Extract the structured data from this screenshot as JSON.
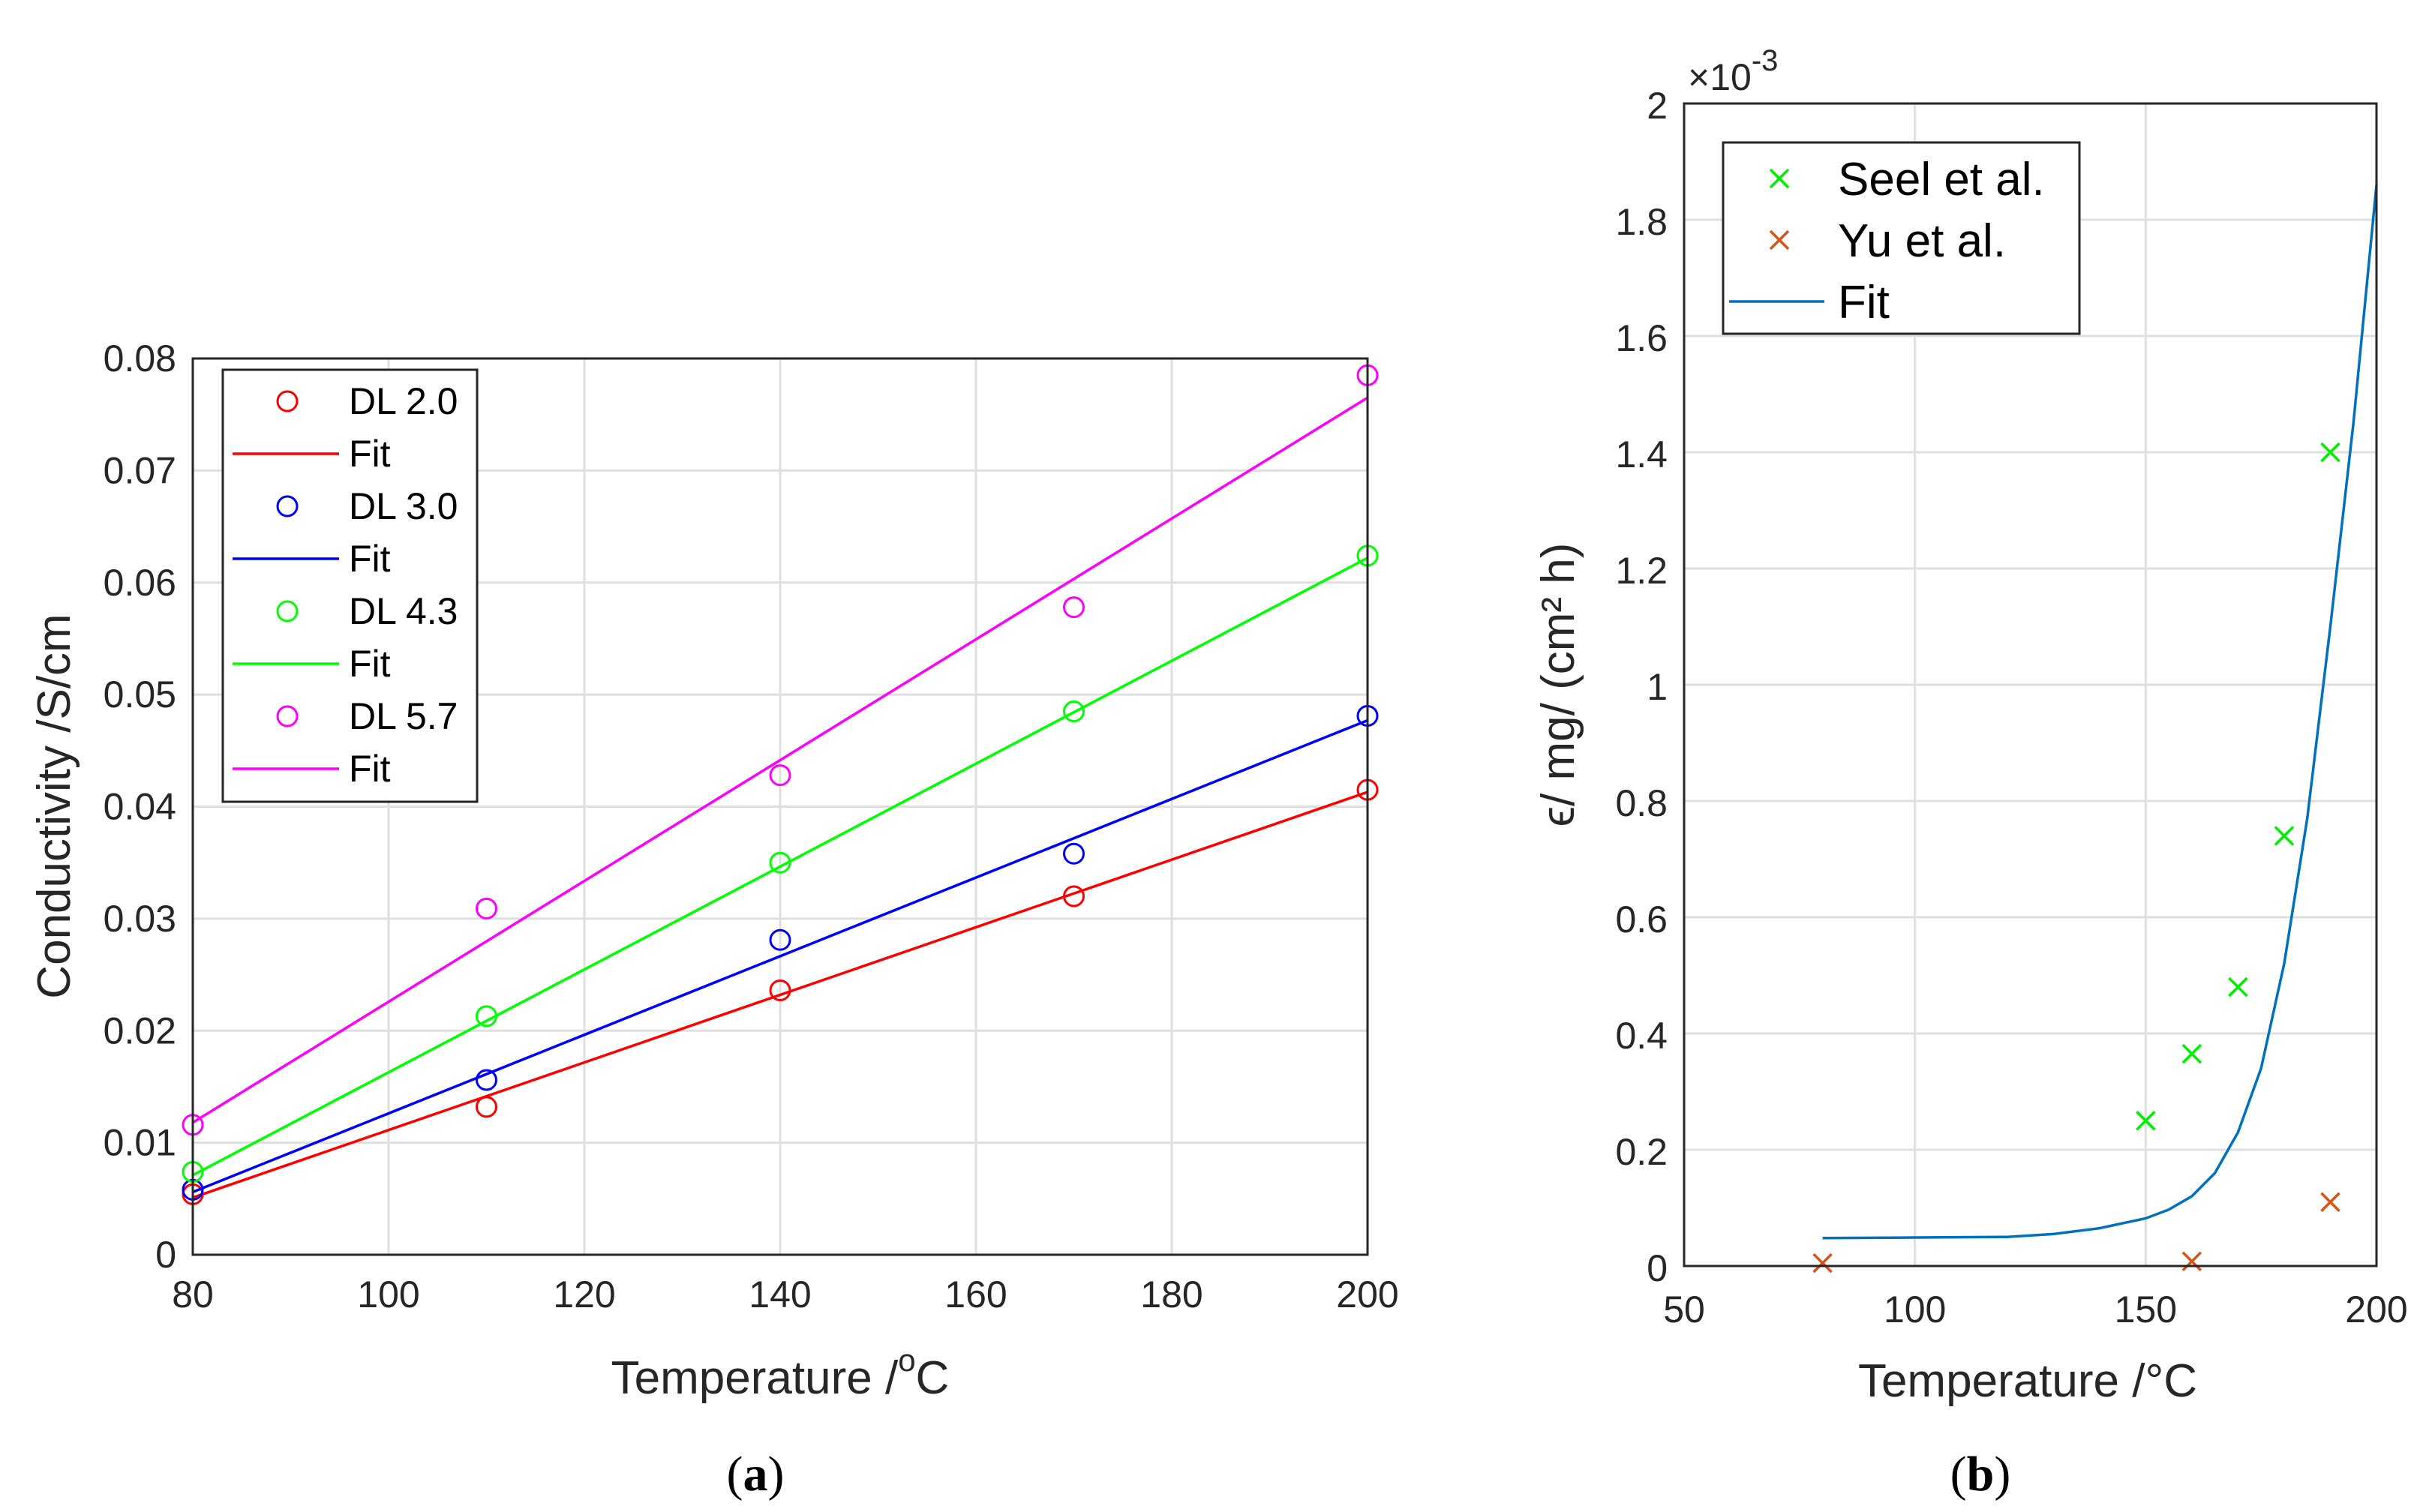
{
  "chart_data": [
    {
      "type": "scatter",
      "panel_label": "(a)",
      "panel_letter": "a",
      "xlabel": "Temperature /",
      "xlabel_sup": "o",
      "xlabel_end": "C",
      "ylabel": "Conductivity /S/cm",
      "xlim": [
        80,
        200
      ],
      "ylim": [
        0,
        0.08
      ],
      "xticks": [
        80,
        100,
        120,
        140,
        160,
        180,
        200
      ],
      "yticks": [
        "0",
        "0.01",
        "0.02",
        "0.03",
        "0.04",
        "0.05",
        "0.06",
        "0.07",
        "0.08"
      ],
      "grid": true,
      "legend_position": "top-left",
      "series": [
        {
          "name": "DL 2.0",
          "fit_name": "Fit",
          "color": "#ff0000",
          "x": [
            80,
            110,
            140,
            170,
            200
          ],
          "y": [
            0.0054,
            0.0132,
            0.0236,
            0.032,
            0.0415
          ],
          "fit": [
            [
              80,
              0.0051
            ],
            [
              200,
              0.0413
            ]
          ]
        },
        {
          "name": "DL 3.0",
          "fit_name": "Fit",
          "color": "#0000ff",
          "x": [
            80,
            110,
            140,
            170,
            200
          ],
          "y": [
            0.0058,
            0.0156,
            0.0281,
            0.0358,
            0.0481
          ],
          "fit": [
            [
              80,
              0.0056
            ],
            [
              200,
              0.0477
            ]
          ]
        },
        {
          "name": "DL 4.3",
          "fit_name": "Fit",
          "color": "#00ff00",
          "x": [
            80,
            110,
            140,
            170,
            200
          ],
          "y": [
            0.0074,
            0.0213,
            0.035,
            0.0485,
            0.0624
          ],
          "fit": [
            [
              80,
              0.0071
            ],
            [
              200,
              0.0622
            ]
          ]
        },
        {
          "name": "DL 5.7",
          "fit_name": "Fit",
          "color": "#ff00ff",
          "x": [
            80,
            110,
            140,
            170,
            200
          ],
          "y": [
            0.0116,
            0.0309,
            0.0428,
            0.0578,
            0.0785
          ],
          "fit": [
            [
              80,
              0.0118
            ],
            [
              200,
              0.0765
            ]
          ]
        }
      ]
    },
    {
      "type": "scatter",
      "panel_label": "(b)",
      "panel_letter": "b",
      "xlabel": "Temperature /°C",
      "ylabel": "ϵ/ mg/ (cm² h)",
      "exponent_prefix": "×10",
      "exponent": "-3",
      "xlim": [
        50,
        200
      ],
      "ylim": [
        0,
        2
      ],
      "xticks": [
        50,
        100,
        150,
        200
      ],
      "yticks": [
        "0",
        "0.2",
        "0.4",
        "0.6",
        "0.8",
        "1",
        "1.2",
        "1.4",
        "1.6",
        "1.8",
        "2"
      ],
      "grid": true,
      "legend_position": "top-left",
      "series": [
        {
          "name": "Seel et al.",
          "marker": "x",
          "color": "#00ee00",
          "x": [
            150,
            160,
            170,
            180,
            190
          ],
          "y": [
            0.25,
            0.365,
            0.48,
            0.74,
            1.4
          ]
        },
        {
          "name": "Yu et al.",
          "marker": "x",
          "color": "#d95319",
          "x": [
            80,
            160,
            190
          ],
          "y": [
            0.005,
            0.008,
            0.11
          ]
        },
        {
          "name": "Fit",
          "marker": "line",
          "color": "#0072bd",
          "x": [
            80,
            100,
            120,
            130,
            140,
            150,
            155,
            160,
            165,
            170,
            175,
            180,
            185,
            190,
            195,
            200
          ],
          "y": [
            0.048,
            0.049,
            0.05,
            0.055,
            0.065,
            0.082,
            0.097,
            0.12,
            0.16,
            0.23,
            0.34,
            0.52,
            0.77,
            1.1,
            1.45,
            1.86
          ]
        }
      ]
    }
  ]
}
